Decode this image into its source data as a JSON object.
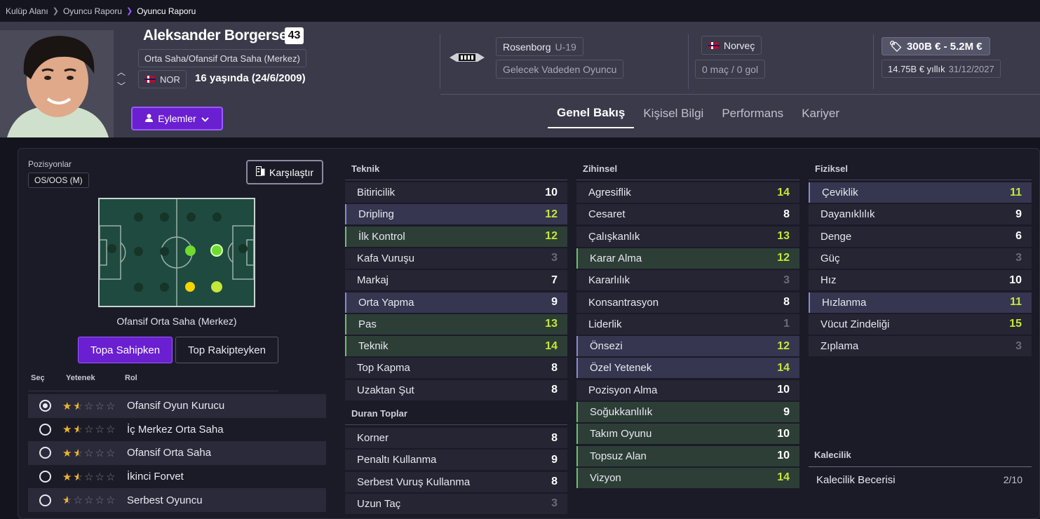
{
  "breadcrumb": {
    "items": [
      "Kulüp Alanı",
      "Oyuncu Raporu",
      "Oyuncu Raporu"
    ]
  },
  "player": {
    "name": "Aleksander Borgersen",
    "number": "43",
    "position": "Orta Saha/Ofansif Orta Saha (Merkez)",
    "nationality_code": "NOR",
    "age_text": "16 yaşında (24/6/2009)"
  },
  "club": {
    "name": "Rosenborg",
    "team": "U-19",
    "status": "Gelecek Vadeden Oyuncu"
  },
  "nation": {
    "name": "Norveç",
    "caps": "0 maç / 0 gol"
  },
  "value": {
    "range": "300B € - 5.2M €",
    "wage": "14.75B € yıllık",
    "contract_end": "31/12/2027"
  },
  "actions": {
    "label": "Eylemler"
  },
  "tabs": [
    "Genel Bakış",
    "Kişisel Bilgi",
    "Performans",
    "Kariyer"
  ],
  "positions": {
    "label": "Pozisyonlar",
    "current": "OS/OOS (M)",
    "selected_name": "Ofansif Orta Saha (Merkez)"
  },
  "compare": {
    "label": "Karşılaştır"
  },
  "toggle": {
    "on": "Topa Sahipken",
    "off": "Top Rakipteyken"
  },
  "role_headers": {
    "select": "Seç",
    "ability": "Yetenek",
    "role": "Rol"
  },
  "roles": [
    {
      "name": "Ofansif Oyun Kurucu",
      "stars": 1.5,
      "selected": true
    },
    {
      "name": "İç Merkez Orta Saha",
      "stars": 1.5,
      "selected": false
    },
    {
      "name": "Ofansif Orta Saha",
      "stars": 1.5,
      "selected": false
    },
    {
      "name": "İkinci Forvet",
      "stars": 1.5,
      "selected": false
    },
    {
      "name": "Serbest Oyuncu",
      "stars": 0.5,
      "selected": false
    }
  ],
  "attributes": {
    "teknik": {
      "title": "Teknik",
      "items": [
        {
          "name": "Bitiricilik",
          "value": 10,
          "hl": "",
          "color": "white"
        },
        {
          "name": "Dripling",
          "value": 12,
          "hl": "b",
          "color": "green"
        },
        {
          "name": "İlk Kontrol",
          "value": 12,
          "hl": "g",
          "color": "green"
        },
        {
          "name": "Kafa Vuruşu",
          "value": 3,
          "hl": "",
          "color": "grey"
        },
        {
          "name": "Markaj",
          "value": 7,
          "hl": "",
          "color": "white"
        },
        {
          "name": "Orta Yapma",
          "value": 9,
          "hl": "b",
          "color": "white"
        },
        {
          "name": "Pas",
          "value": 13,
          "hl": "g",
          "color": "green"
        },
        {
          "name": "Teknik",
          "value": 14,
          "hl": "g",
          "color": "green"
        },
        {
          "name": "Top Kapma",
          "value": 8,
          "hl": "",
          "color": "white"
        },
        {
          "name": "Uzaktan Şut",
          "value": 8,
          "hl": "",
          "color": "white"
        }
      ]
    },
    "duran": {
      "title": "Duran Toplar",
      "items": [
        {
          "name": "Korner",
          "value": 8,
          "hl": "",
          "color": "white"
        },
        {
          "name": "Penaltı Kullanma",
          "value": 9,
          "hl": "",
          "color": "white"
        },
        {
          "name": "Serbest Vuruş Kullanma",
          "value": 8,
          "hl": "",
          "color": "white"
        },
        {
          "name": "Uzun Taç",
          "value": 3,
          "hl": "",
          "color": "grey"
        }
      ]
    },
    "zihinsel": {
      "title": "Zihinsel",
      "items": [
        {
          "name": "Agresiflik",
          "value": 14,
          "hl": "",
          "color": "green"
        },
        {
          "name": "Cesaret",
          "value": 8,
          "hl": "",
          "color": "white"
        },
        {
          "name": "Çalışkanlık",
          "value": 13,
          "hl": "",
          "color": "green"
        },
        {
          "name": "Karar Alma",
          "value": 12,
          "hl": "g",
          "color": "green"
        },
        {
          "name": "Kararlılık",
          "value": 3,
          "hl": "",
          "color": "grey"
        },
        {
          "name": "Konsantrasyon",
          "value": 8,
          "hl": "",
          "color": "white"
        },
        {
          "name": "Liderlik",
          "value": 1,
          "hl": "",
          "color": "grey"
        },
        {
          "name": "Önsezi",
          "value": 12,
          "hl": "b",
          "color": "green"
        },
        {
          "name": "Özel Yetenek",
          "value": 14,
          "hl": "b",
          "color": "green"
        },
        {
          "name": "Pozisyon Alma",
          "value": 10,
          "hl": "",
          "color": "white"
        },
        {
          "name": "Soğukkanlılık",
          "value": 9,
          "hl": "g",
          "color": "white"
        },
        {
          "name": "Takım Oyunu",
          "value": 10,
          "hl": "g",
          "color": "white"
        },
        {
          "name": "Topsuz Alan",
          "value": 10,
          "hl": "g",
          "color": "white"
        },
        {
          "name": "Vizyon",
          "value": 14,
          "hl": "g",
          "color": "green"
        }
      ]
    },
    "fiziksel": {
      "title": "Fiziksel",
      "items": [
        {
          "name": "Çeviklik",
          "value": 11,
          "hl": "b",
          "color": "green"
        },
        {
          "name": "Dayanıklılık",
          "value": 9,
          "hl": "",
          "color": "white"
        },
        {
          "name": "Denge",
          "value": 6,
          "hl": "",
          "color": "white"
        },
        {
          "name": "Güç",
          "value": 3,
          "hl": "",
          "color": "grey"
        },
        {
          "name": "Hız",
          "value": 10,
          "hl": "",
          "color": "white"
        },
        {
          "name": "Hızlanma",
          "value": 11,
          "hl": "b",
          "color": "green"
        },
        {
          "name": "Vücut Zindeliği",
          "value": 15,
          "hl": "",
          "color": "green"
        },
        {
          "name": "Zıplama",
          "value": 3,
          "hl": "",
          "color": "grey"
        }
      ]
    }
  },
  "goalkeeping": {
    "title": "Kalecilik",
    "label": "Kalecilik Becerisi",
    "rating": "2/10"
  },
  "colors": {
    "accent": "#6a1fd0",
    "green_value": "#c5e63a",
    "grey_value": "#6a6a78"
  }
}
